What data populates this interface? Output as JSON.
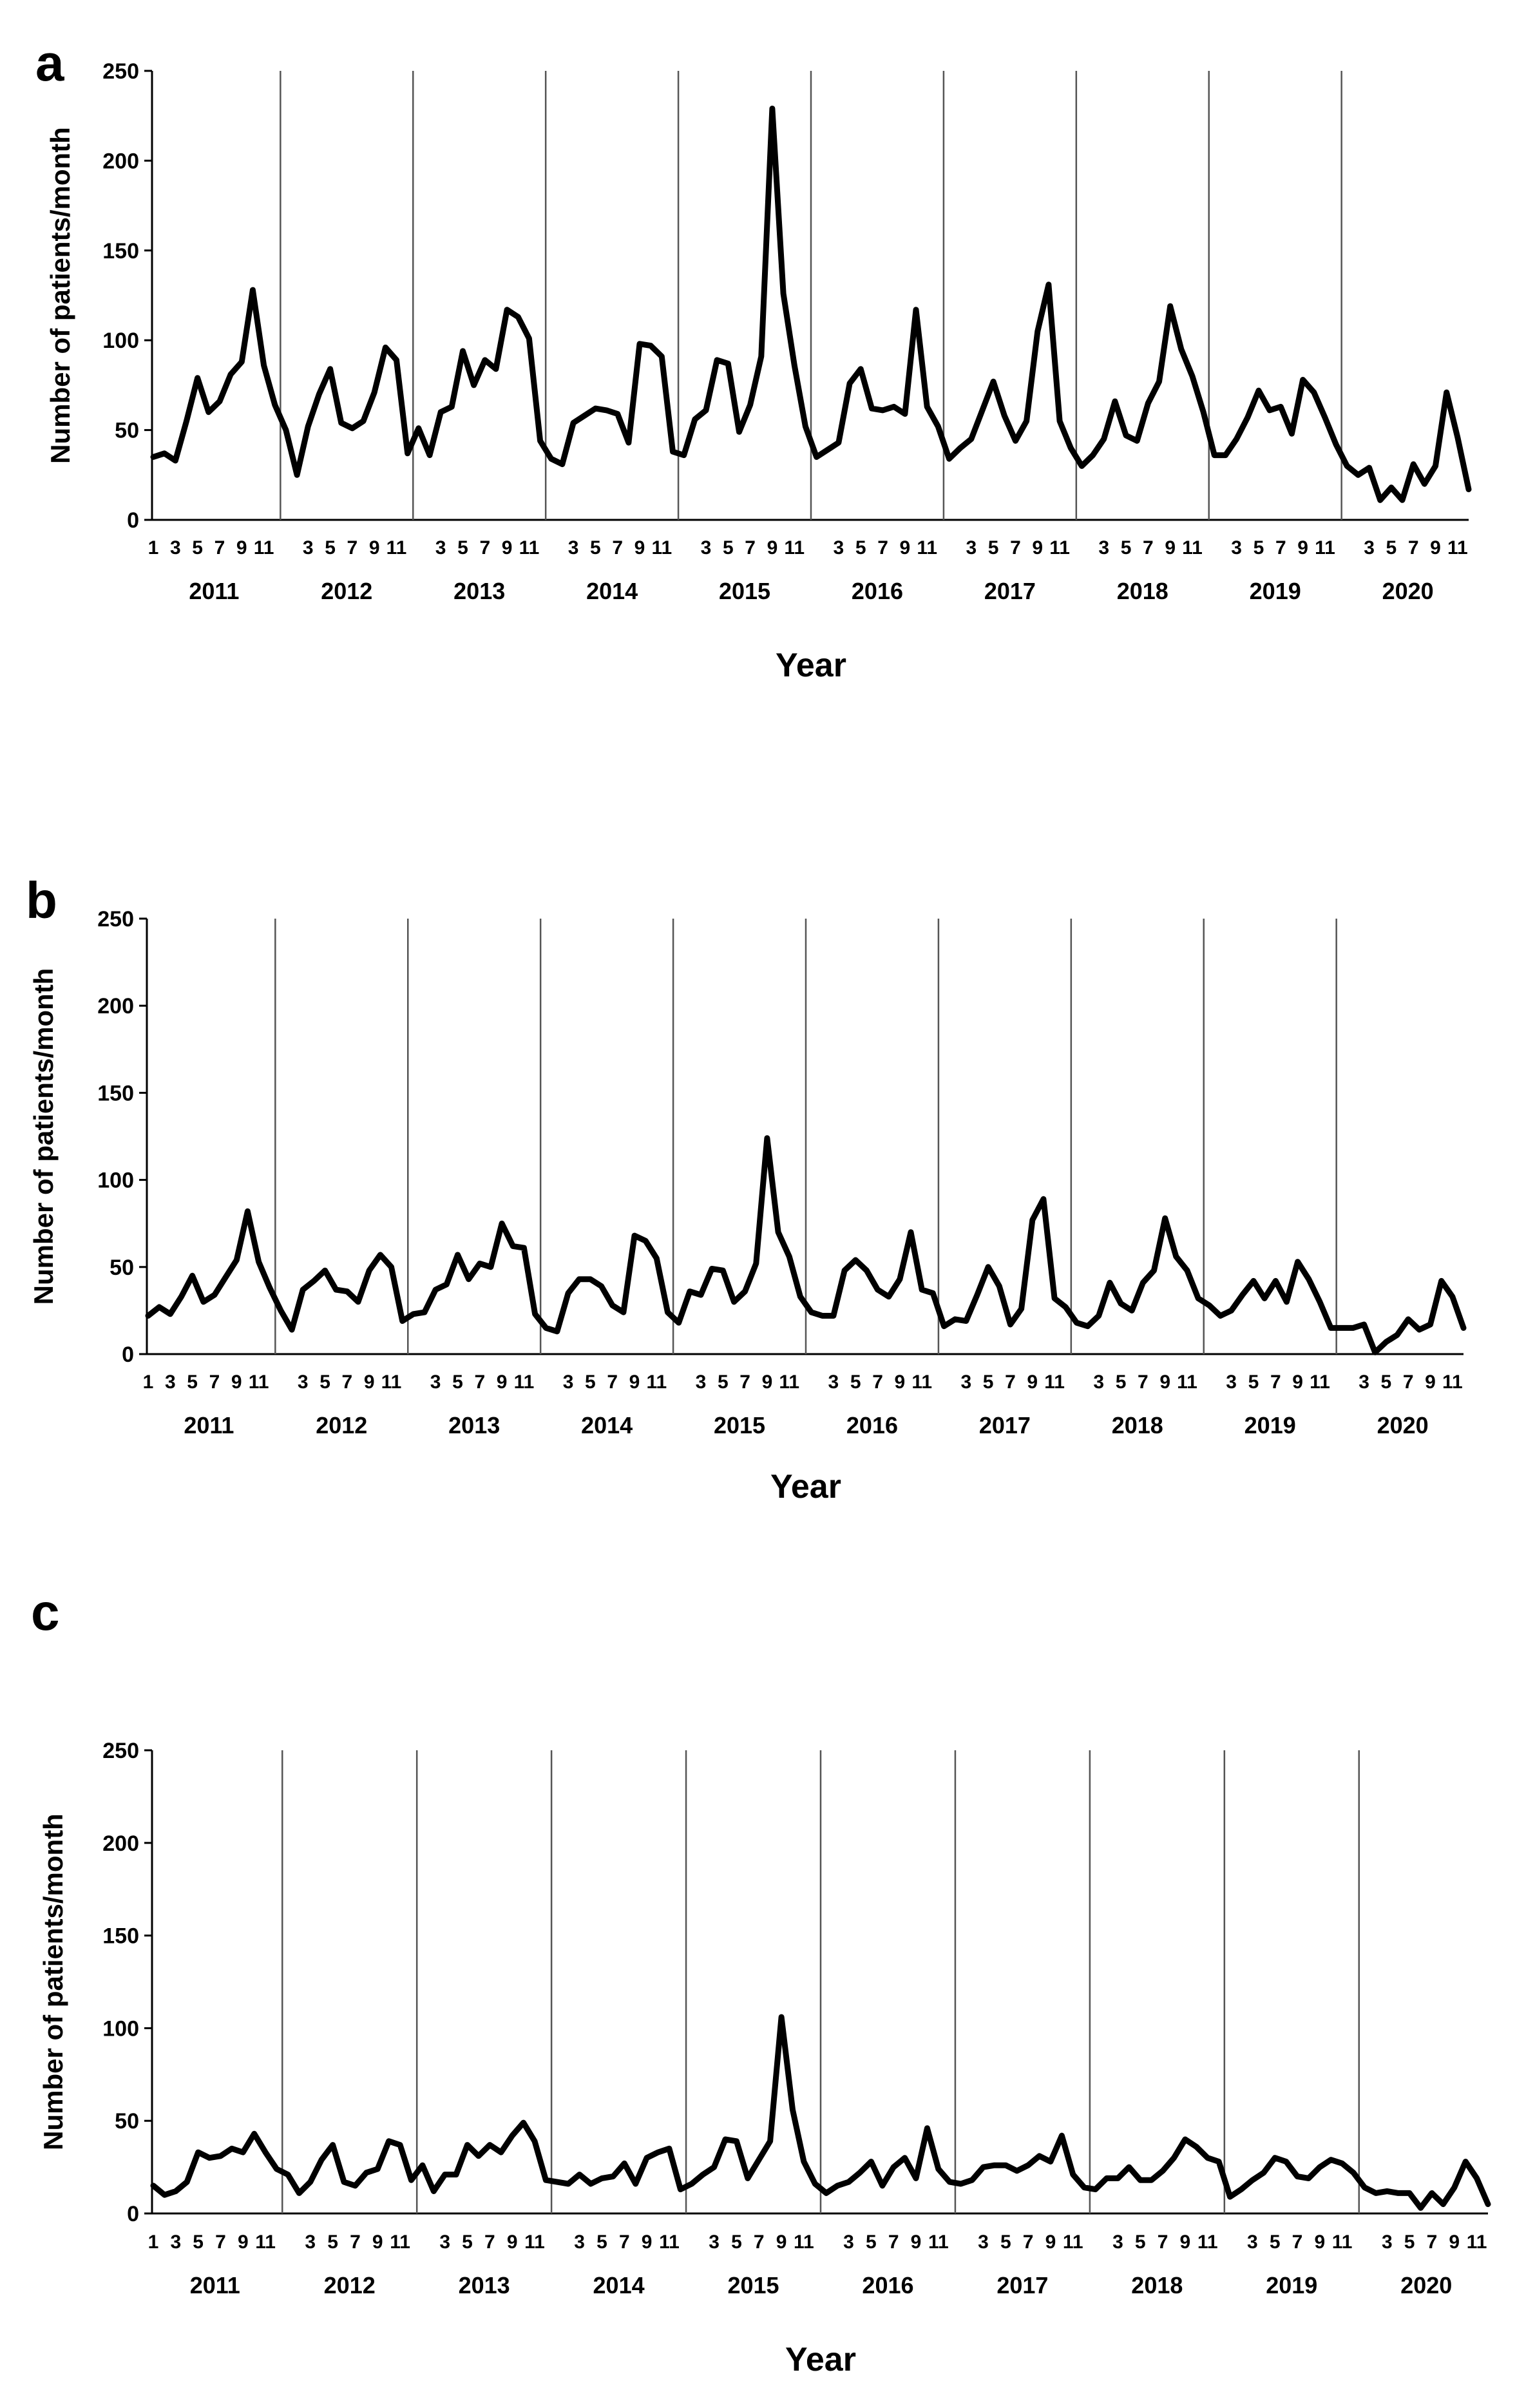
{
  "chart_data": [
    {
      "type": "line",
      "panel_label": "a",
      "ylabel": "Number of patients/month",
      "xlabel": "Year",
      "ylim": [
        0,
        250
      ],
      "yticks": [
        0,
        50,
        100,
        150,
        200,
        250
      ],
      "grid": false,
      "year_separators": true,
      "years": [
        "2011",
        "2012",
        "2013",
        "2014",
        "2015",
        "2016",
        "2017",
        "2018",
        "2019",
        "2020"
      ],
      "month_ticks_first_year": [
        "1",
        "3",
        "5",
        "7",
        "9",
        "11"
      ],
      "month_ticks_other_years": [
        "3",
        "5",
        "7",
        "9",
        "11"
      ],
      "series": [
        {
          "name": "Number of patients/month",
          "values": [
            35,
            37,
            33,
            55,
            79,
            60,
            66,
            81,
            88,
            128,
            86,
            64,
            50,
            25,
            52,
            70,
            84,
            54,
            51,
            55,
            71,
            96,
            89,
            37,
            51,
            36,
            60,
            63,
            94,
            75,
            89,
            84,
            117,
            113,
            101,
            44,
            34,
            31,
            54,
            58,
            62,
            61,
            59,
            43,
            98,
            97,
            91,
            38,
            36,
            56,
            61,
            89,
            87,
            49,
            64,
            91,
            229,
            126,
            86,
            52,
            35,
            39,
            43,
            76,
            84,
            62,
            61,
            63,
            59,
            117,
            63,
            52,
            34,
            40,
            45,
            61,
            77,
            58,
            44,
            55,
            105,
            131,
            55,
            40,
            30,
            36,
            45,
            66,
            47,
            44,
            65,
            77,
            119,
            95,
            80,
            60,
            36,
            36,
            45,
            57,
            72,
            61,
            63,
            48,
            78,
            71,
            57,
            42,
            30,
            25,
            29,
            11,
            18,
            11,
            31,
            20,
            30,
            71,
            46,
            17
          ]
        }
      ]
    },
    {
      "type": "line",
      "panel_label": "b",
      "ylabel": "Number of patients/month",
      "xlabel": "Year",
      "ylim": [
        0,
        250
      ],
      "yticks": [
        0,
        50,
        100,
        150,
        200,
        250
      ],
      "grid": false,
      "year_separators": true,
      "years": [
        "2011",
        "2012",
        "2013",
        "2014",
        "2015",
        "2016",
        "2017",
        "2018",
        "2019",
        "2020"
      ],
      "month_ticks_first_year": [
        "1",
        "3",
        "5",
        "7",
        "9",
        "11"
      ],
      "month_ticks_other_years": [
        "3",
        "5",
        "7",
        "9",
        "11"
      ],
      "series": [
        {
          "name": "Number of patients/month",
          "values": [
            22,
            27,
            23,
            33,
            45,
            30,
            34,
            44,
            54,
            82,
            53,
            38,
            25,
            14,
            37,
            42,
            48,
            37,
            36,
            30,
            48,
            57,
            50,
            19,
            23,
            24,
            37,
            40,
            57,
            43,
            52,
            50,
            75,
            62,
            61,
            23,
            15,
            13,
            35,
            43,
            43,
            39,
            28,
            24,
            68,
            65,
            55,
            24,
            18,
            36,
            34,
            49,
            48,
            30,
            36,
            52,
            124,
            70,
            56,
            33,
            24,
            22,
            22,
            48,
            54,
            48,
            37,
            33,
            43,
            70,
            37,
            35,
            16,
            20,
            19,
            34,
            50,
            39,
            17,
            26,
            77,
            89,
            32,
            27,
            18,
            16,
            22,
            41,
            29,
            25,
            41,
            48,
            78,
            56,
            48,
            32,
            28,
            22,
            25,
            34,
            42,
            32,
            42,
            30,
            53,
            43,
            30,
            15,
            15,
            15,
            17,
            1,
            7,
            11,
            20,
            14,
            17,
            42,
            33,
            15
          ]
        }
      ]
    },
    {
      "type": "line",
      "panel_label": "c",
      "ylabel": "Number of patients/month",
      "xlabel": "Year",
      "ylim": [
        0,
        250
      ],
      "yticks": [
        0,
        50,
        100,
        150,
        200,
        250
      ],
      "grid": false,
      "year_separators": true,
      "years": [
        "2011",
        "2012",
        "2013",
        "2014",
        "2015",
        "2016",
        "2017",
        "2018",
        "2019",
        "2020"
      ],
      "month_ticks_first_year": [
        "1",
        "3",
        "5",
        "7",
        "9",
        "11"
      ],
      "month_ticks_other_years": [
        "3",
        "5",
        "7",
        "9",
        "11"
      ],
      "series": [
        {
          "name": "Number of patients/month",
          "values": [
            15,
            10,
            12,
            17,
            33,
            30,
            31,
            35,
            33,
            43,
            33,
            24,
            21,
            11,
            17,
            29,
            37,
            17,
            15,
            22,
            24,
            39,
            37,
            18,
            26,
            12,
            21,
            21,
            37,
            31,
            37,
            33,
            42,
            49,
            39,
            18,
            17,
            16,
            21,
            16,
            19,
            20,
            27,
            16,
            30,
            33,
            35,
            13,
            16,
            21,
            25,
            40,
            39,
            19,
            29,
            39,
            106,
            56,
            28,
            16,
            11,
            15,
            17,
            22,
            28,
            15,
            25,
            30,
            19,
            46,
            24,
            17,
            16,
            18,
            25,
            26,
            26,
            23,
            26,
            31,
            28,
            42,
            21,
            14,
            13,
            19,
            19,
            25,
            18,
            18,
            23,
            30,
            40,
            36,
            30,
            28,
            9,
            13,
            18,
            22,
            30,
            28,
            20,
            19,
            25,
            29,
            27,
            22,
            14,
            11,
            12,
            11,
            11,
            3,
            11,
            5,
            14,
            28,
            19,
            5
          ]
        }
      ]
    }
  ]
}
